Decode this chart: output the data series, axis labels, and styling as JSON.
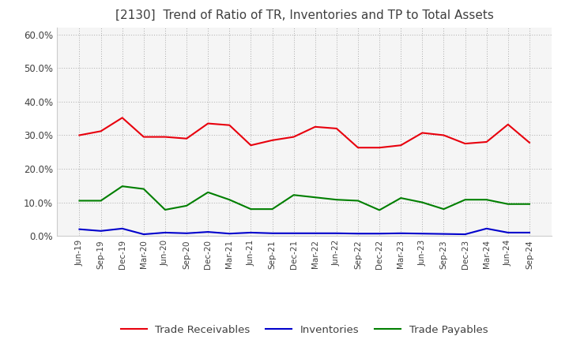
{
  "title": "[2130]  Trend of Ratio of TR, Inventories and TP to Total Assets",
  "x_labels": [
    "Jun-19",
    "Sep-19",
    "Dec-19",
    "Mar-20",
    "Jun-20",
    "Sep-20",
    "Dec-20",
    "Mar-21",
    "Jun-21",
    "Sep-21",
    "Dec-21",
    "Mar-22",
    "Jun-22",
    "Sep-22",
    "Dec-22",
    "Mar-23",
    "Jun-23",
    "Sep-23",
    "Dec-23",
    "Mar-24",
    "Jun-24",
    "Sep-24"
  ],
  "trade_receivables": [
    0.3,
    0.312,
    0.352,
    0.295,
    0.295,
    0.29,
    0.335,
    0.33,
    0.27,
    0.285,
    0.295,
    0.325,
    0.32,
    0.263,
    0.263,
    0.27,
    0.307,
    0.3,
    0.275,
    0.28,
    0.332,
    0.278
  ],
  "inventories": [
    0.02,
    0.015,
    0.022,
    0.005,
    0.01,
    0.008,
    0.012,
    0.007,
    0.01,
    0.008,
    0.008,
    0.008,
    0.008,
    0.007,
    0.007,
    0.008,
    0.007,
    0.006,
    0.005,
    0.022,
    0.01,
    0.01
  ],
  "trade_payables": [
    0.105,
    0.105,
    0.148,
    0.14,
    0.078,
    0.09,
    0.13,
    0.108,
    0.08,
    0.08,
    0.122,
    0.115,
    0.108,
    0.105,
    0.077,
    0.113,
    0.1,
    0.08,
    0.108,
    0.108,
    0.095,
    0.095
  ],
  "tr_color": "#e8000d",
  "inv_color": "#0000cc",
  "tp_color": "#007f00",
  "ylim": [
    0.0,
    0.62
  ],
  "yticks": [
    0.0,
    0.1,
    0.2,
    0.3,
    0.4,
    0.5,
    0.6
  ],
  "legend_labels": [
    "Trade Receivables",
    "Inventories",
    "Trade Payables"
  ],
  "background_color": "#ffffff",
  "plot_bg_color": "#f5f5f5",
  "grid_color": "#aaaaaa",
  "title_color": "#404040"
}
